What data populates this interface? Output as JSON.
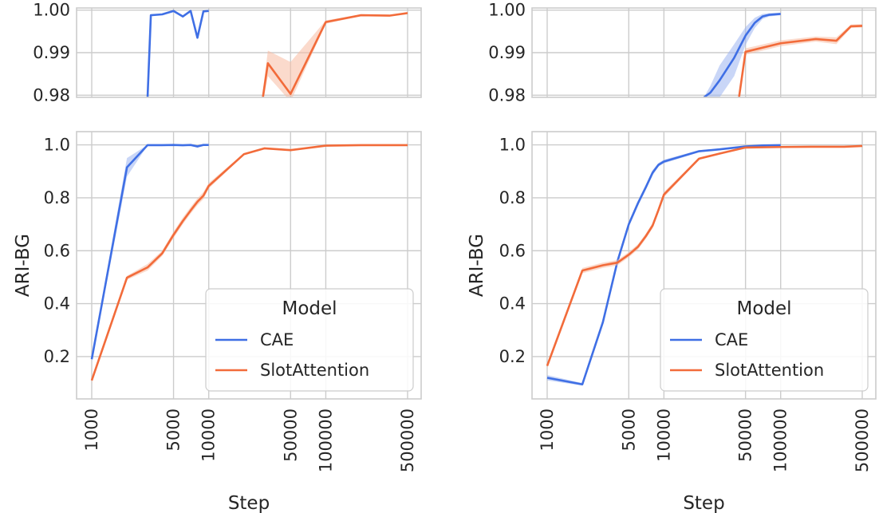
{
  "colors": {
    "cae": "#3F6FE5",
    "slot": "#F26B3A",
    "cae_band": "#9DB4F0",
    "slot_band": "#F7BBA3",
    "grid": "#cccccc"
  },
  "legend": {
    "title": "Model",
    "entries": [
      "CAE",
      "SlotAttention"
    ]
  },
  "chart_data": [
    {
      "id": "left-top",
      "type": "line",
      "xscale": "log",
      "xlim": [
        1000,
        500000
      ],
      "ylim": [
        0.9795,
        1.0005
      ],
      "xticks": [
        1000,
        5000,
        10000,
        50000,
        100000,
        500000
      ],
      "yticks": [
        0.98,
        0.99,
        1.0
      ],
      "ytick_labels": [
        "0.98",
        "0.99",
        "1.00"
      ],
      "show_xtick_labels": false,
      "xlabel": "",
      "ylabel": "",
      "series": [
        {
          "name": "CAE",
          "x": [
            3000,
            3200,
            4000,
            5000,
            6000,
            7000,
            8000,
            9000,
            10000
          ],
          "y": [
            0.9795,
            0.9988,
            0.999,
            0.9998,
            0.9985,
            0.9998,
            0.9935,
            0.9997,
            0.9998
          ],
          "band": []
        },
        {
          "name": "SlotAttention",
          "x": [
            29000,
            32000,
            50000,
            100000,
            200000,
            350000,
            500000
          ],
          "y": [
            0.9795,
            0.9875,
            0.9803,
            0.9972,
            0.9988,
            0.9987,
            0.9993
          ],
          "band": [
            [
              0.978,
              0.981
            ],
            [
              0.9845,
              0.9905
            ],
            [
              0.9785,
              0.9878
            ],
            [
              0.9968,
              0.9976
            ],
            [
              0.9986,
              0.999
            ],
            [
              0.9985,
              0.9989
            ],
            [
              0.9991,
              0.9995
            ]
          ]
        }
      ]
    },
    {
      "id": "left-bottom",
      "type": "line",
      "xscale": "log",
      "xlim": [
        1000,
        500000
      ],
      "ylim": [
        0.04,
        1.05
      ],
      "xticks": [
        1000,
        5000,
        10000,
        50000,
        100000,
        500000
      ],
      "yticks": [
        0.2,
        0.4,
        0.6,
        0.8,
        1.0
      ],
      "ytick_labels": [
        "0.2",
        "0.4",
        "0.6",
        "0.8",
        "1.0"
      ],
      "show_xtick_labels": true,
      "xtick_labels": [
        "1000",
        "5000",
        "10000",
        "50000",
        "100000",
        "500000"
      ],
      "xlabel": "Step",
      "ylabel": "ARI-BG",
      "series": [
        {
          "name": "CAE",
          "x": [
            1000,
            2000,
            3000,
            4000,
            5000,
            6000,
            7000,
            8000,
            9000,
            10000
          ],
          "y": [
            0.19,
            0.915,
            0.999,
            0.999,
            0.9998,
            0.9985,
            0.9997,
            0.994,
            0.9997,
            0.9998
          ],
          "band": [
            [
              0.18,
              0.2
            ],
            [
              0.88,
              0.95
            ],
            [
              0.998,
              1.0
            ],
            [
              0.998,
              1.0
            ],
            [
              0.999,
              1.0
            ],
            [
              0.997,
              1.0
            ],
            [
              0.999,
              1.0
            ],
            [
              0.99,
              0.998
            ],
            [
              0.999,
              1.0
            ],
            [
              0.999,
              1.0
            ]
          ]
        },
        {
          "name": "SlotAttention",
          "x": [
            1000,
            2000,
            3000,
            4000,
            5000,
            6000,
            7000,
            8000,
            9000,
            10000,
            20000,
            30000,
            50000,
            100000,
            200000,
            350000,
            500000
          ],
          "y": [
            0.11,
            0.498,
            0.537,
            0.59,
            0.66,
            0.712,
            0.752,
            0.785,
            0.808,
            0.845,
            0.965,
            0.987,
            0.98,
            0.997,
            0.999,
            0.999,
            0.999
          ],
          "band": [
            [
              0.1,
              0.12
            ],
            [
              0.49,
              0.505
            ],
            [
              0.525,
              0.55
            ],
            [
              0.58,
              0.6
            ],
            [
              0.648,
              0.672
            ],
            [
              0.7,
              0.725
            ],
            [
              0.74,
              0.765
            ],
            [
              0.772,
              0.798
            ],
            [
              0.795,
              0.822
            ],
            [
              0.835,
              0.856
            ],
            [
              0.961,
              0.969
            ],
            [
              0.984,
              0.99
            ],
            [
              0.977,
              0.984
            ],
            [
              0.996,
              0.998
            ],
            [
              0.998,
              1.0
            ],
            [
              0.998,
              1.0
            ],
            [
              0.998,
              1.0
            ]
          ]
        }
      ]
    },
    {
      "id": "right-top",
      "type": "line",
      "xscale": "log",
      "xlim": [
        1000,
        500000
      ],
      "ylim": [
        0.9795,
        1.0005
      ],
      "xticks": [
        1000,
        5000,
        10000,
        50000,
        100000,
        500000
      ],
      "yticks": [
        0.98,
        0.99,
        1.0
      ],
      "ytick_labels": [
        "0.98",
        "0.99",
        "1.00"
      ],
      "show_xtick_labels": false,
      "xlabel": "",
      "ylabel": "",
      "series": [
        {
          "name": "CAE",
          "x": [
            22000,
            25000,
            30000,
            40000,
            50000,
            60000,
            70000,
            80000,
            100000
          ],
          "y": [
            0.9795,
            0.9806,
            0.9835,
            0.9888,
            0.994,
            0.997,
            0.9985,
            0.9989,
            0.9991
          ],
          "band": [
            [
              0.9795,
              0.9795
            ],
            [
              0.9795,
              0.9822
            ],
            [
              0.9795,
              0.987
            ],
            [
              0.9845,
              0.992
            ],
            [
              0.9918,
              0.996
            ],
            [
              0.9958,
              0.9982
            ],
            [
              0.9979,
              0.9991
            ],
            [
              0.9985,
              0.9993
            ],
            [
              0.9988,
              0.9994
            ]
          ]
        },
        {
          "name": "SlotAttention",
          "x": [
            44000,
            50000,
            100000,
            200000,
            300000,
            400000,
            500000
          ],
          "y": [
            0.9795,
            0.9902,
            0.9922,
            0.9932,
            0.9928,
            0.9962,
            0.9963
          ],
          "band": [
            [
              0.9795,
              0.9795
            ],
            [
              0.9895,
              0.991
            ],
            [
              0.9915,
              0.9929
            ],
            [
              0.9926,
              0.9938
            ],
            [
              0.992,
              0.9936
            ],
            [
              0.9958,
              0.9966
            ],
            [
              0.9959,
              0.9967
            ]
          ]
        }
      ]
    },
    {
      "id": "right-bottom",
      "type": "line",
      "xscale": "log",
      "xlim": [
        1000,
        500000
      ],
      "ylim": [
        0.04,
        1.05
      ],
      "xticks": [
        1000,
        5000,
        10000,
        50000,
        100000,
        500000
      ],
      "yticks": [
        0.2,
        0.4,
        0.6,
        0.8,
        1.0
      ],
      "ytick_labels": [
        "0.2",
        "0.4",
        "0.6",
        "0.8",
        "1.0"
      ],
      "show_xtick_labels": true,
      "xtick_labels": [
        "1000",
        "5000",
        "10000",
        "50000",
        "100000",
        "500000"
      ],
      "xlabel": "Step",
      "ylabel": "ARI-BG",
      "series": [
        {
          "name": "CAE",
          "x": [
            1000,
            2000,
            3000,
            4000,
            5000,
            6000,
            7000,
            8000,
            9000,
            10000,
            20000,
            30000,
            50000,
            70000,
            100000
          ],
          "y": [
            0.12,
            0.095,
            0.33,
            0.56,
            0.7,
            0.78,
            0.84,
            0.895,
            0.925,
            0.937,
            0.976,
            0.983,
            0.994,
            0.998,
            0.999
          ],
          "band": [
            [
              0.11,
              0.13
            ],
            [
              0.09,
              0.1
            ],
            [
              0.32,
              0.34
            ],
            [
              0.55,
              0.57
            ],
            [
              0.69,
              0.71
            ],
            [
              0.77,
              0.79
            ],
            [
              0.83,
              0.85
            ],
            [
              0.885,
              0.905
            ],
            [
              0.918,
              0.932
            ],
            [
              0.93,
              0.944
            ],
            [
              0.972,
              0.98
            ],
            [
              0.98,
              0.986
            ],
            [
              0.992,
              0.996
            ],
            [
              0.997,
              0.999
            ],
            [
              0.998,
              1.0
            ]
          ]
        },
        {
          "name": "SlotAttention",
          "x": [
            1000,
            2000,
            3000,
            4000,
            5000,
            6000,
            7000,
            8000,
            9000,
            10000,
            20000,
            30000,
            50000,
            100000,
            200000,
            350000,
            500000
          ],
          "y": [
            0.165,
            0.525,
            0.545,
            0.555,
            0.585,
            0.615,
            0.655,
            0.695,
            0.755,
            0.812,
            0.948,
            0.967,
            0.99,
            0.992,
            0.993,
            0.993,
            0.996
          ],
          "band": [
            [
              0.155,
              0.175
            ],
            [
              0.515,
              0.535
            ],
            [
              0.535,
              0.555
            ],
            [
              0.545,
              0.565
            ],
            [
              0.575,
              0.595
            ],
            [
              0.605,
              0.625
            ],
            [
              0.645,
              0.665
            ],
            [
              0.685,
              0.705
            ],
            [
              0.745,
              0.765
            ],
            [
              0.802,
              0.822
            ],
            [
              0.944,
              0.952
            ],
            [
              0.964,
              0.97
            ],
            [
              0.988,
              0.992
            ],
            [
              0.99,
              0.994
            ],
            [
              0.991,
              0.995
            ],
            [
              0.991,
              0.995
            ],
            [
              0.995,
              0.997
            ]
          ]
        }
      ]
    }
  ]
}
